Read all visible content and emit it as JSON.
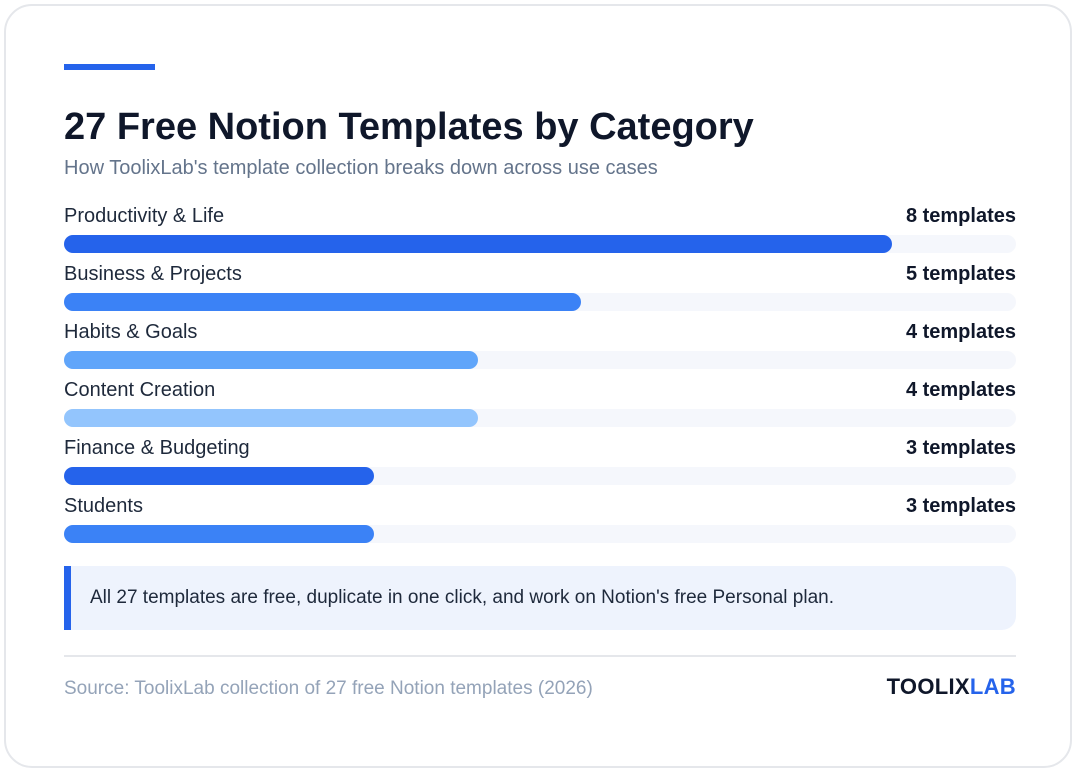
{
  "title": "27 Free Notion Templates by Category",
  "subtitle": "How ToolixLab's template collection breaks down across use cases",
  "chart_data": {
    "type": "bar",
    "orientation": "horizontal",
    "title": "27 Free Notion Templates by Category",
    "subtitle": "How ToolixLab's template collection breaks down across use cases",
    "categories": [
      "Productivity & Life",
      "Business & Projects",
      "Habits & Goals",
      "Content Creation",
      "Finance & Budgeting",
      "Students"
    ],
    "values": [
      8,
      5,
      4,
      4,
      3,
      3
    ],
    "value_unit": "templates",
    "xlim": [
      0,
      9.2
    ],
    "grid": false,
    "legend": "none",
    "bar_colors": [
      "#2563eb",
      "#3b82f6",
      "#60a5fa",
      "#93c5fd",
      "#2563eb",
      "#3b82f6"
    ],
    "track_color": "#f5f7fc"
  },
  "note": "All 27 templates are free, duplicate in one click, and work on Notion's free Personal plan.",
  "source": "Source: ToolixLab collection of 27 free Notion templates (2026)",
  "brand": {
    "part1": "TOOLIX",
    "part2": "LAB",
    "color_primary": "#0f172a",
    "color_accent": "#2563eb"
  }
}
